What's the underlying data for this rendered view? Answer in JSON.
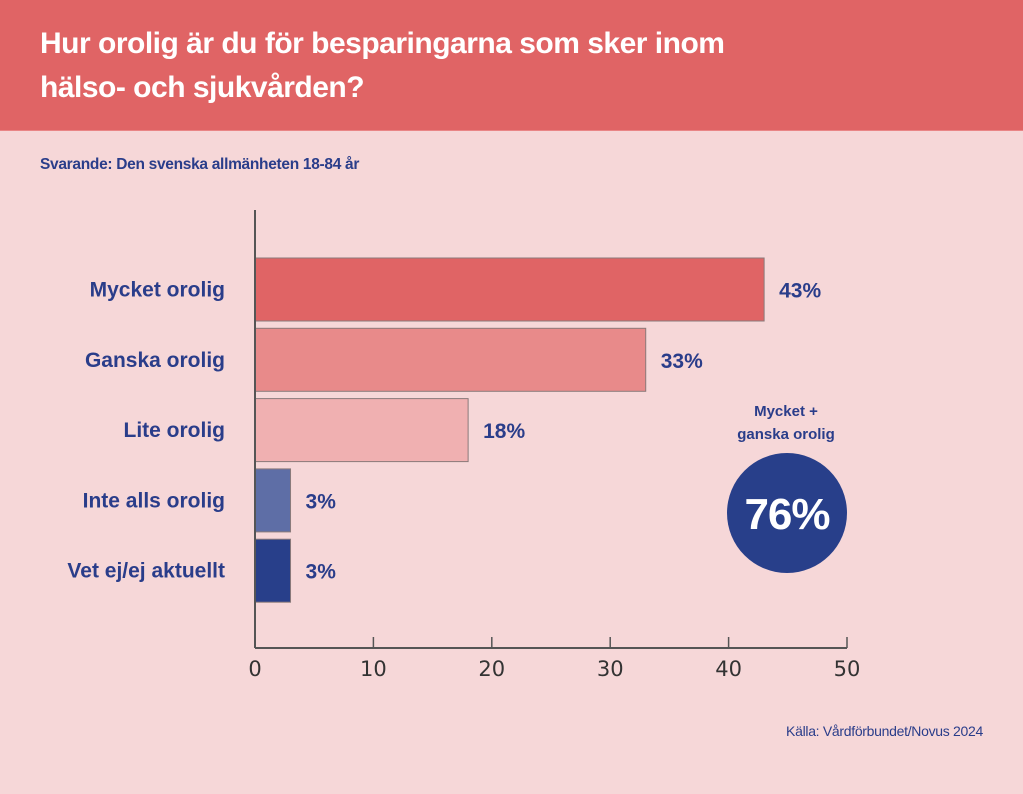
{
  "header": {
    "title_line1": "Hur orolig är du för besparingarna som sker inom",
    "title_line2": "hälso- och sjukvården?"
  },
  "subtitle": "Svarande: Den svenska allmänheten 18-84 år",
  "source": "Källa: Vårdförbundet/Novus 2024",
  "callout": {
    "label_line1": "Mycket +",
    "label_line2": "ganska orolig",
    "value": "76%",
    "color": "#283f8a"
  },
  "chart_data": {
    "type": "bar",
    "orientation": "horizontal",
    "title": "Hur orolig är du för besparingarna som sker inom hälso- och sjukvården?",
    "xlabel": "",
    "ylabel": "",
    "categories": [
      "Mycket orolig",
      "Ganska orolig",
      "Lite orolig",
      "Inte alls orolig",
      "Vet ej/ej aktuellt"
    ],
    "values": [
      43,
      33,
      18,
      3,
      3
    ],
    "value_labels": [
      "43%",
      "33%",
      "18%",
      "3%",
      "3%"
    ],
    "colors": [
      "#e06465",
      "#e88a8a",
      "#f0b0b1",
      "#5e6ea6",
      "#283f8a"
    ],
    "xlim": [
      0,
      50
    ],
    "xticks": [
      0,
      10,
      20,
      30,
      40,
      50
    ],
    "xtick_labels": [
      "0",
      "10",
      "20",
      "30",
      "40",
      "50"
    ],
    "grid": false,
    "legend": "none"
  }
}
